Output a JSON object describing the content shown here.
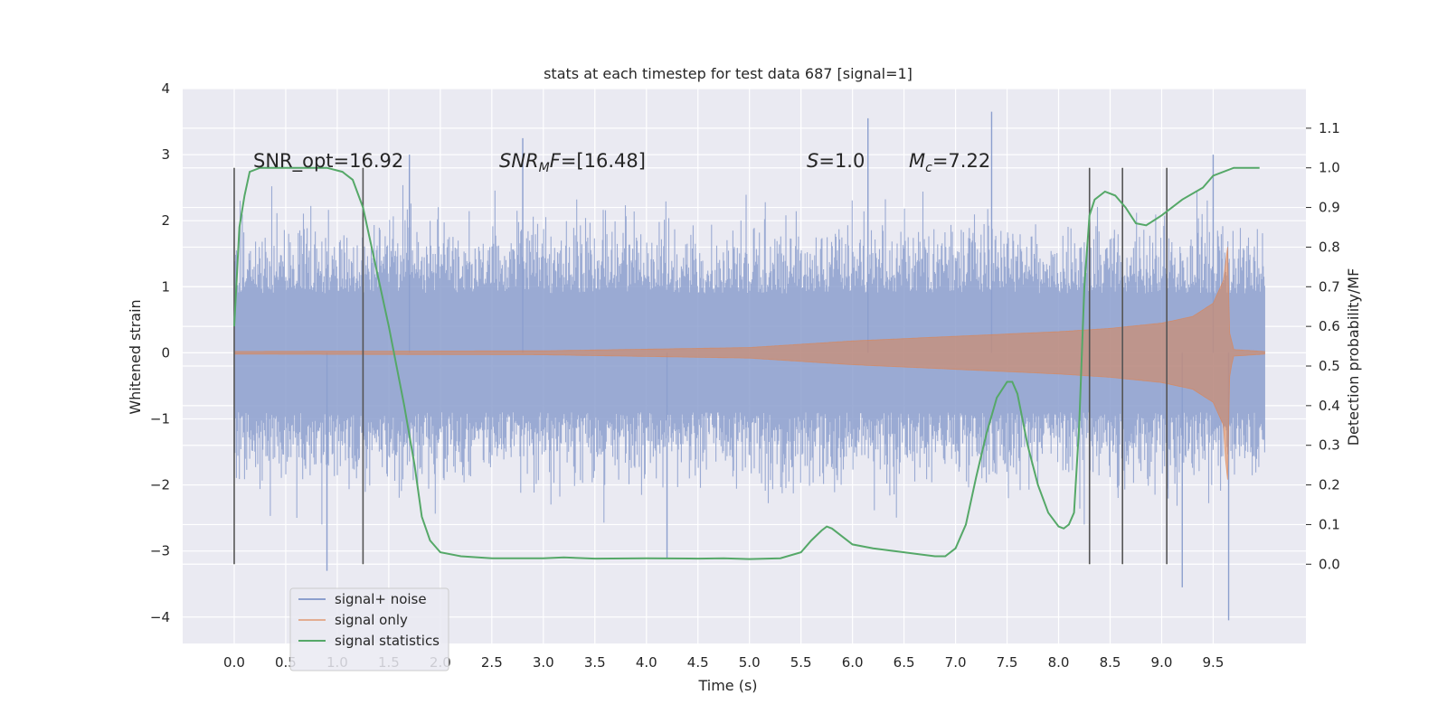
{
  "chart_data": {
    "type": "line",
    "title": "stats at each timestep for test data 687 [signal=1]",
    "xlabel": "Time (s)",
    "ylabel_left": "Whitened strain",
    "ylabel_right": "Detection probability/MF",
    "xlim": [
      -0.5,
      10.4
    ],
    "ylim_left": [
      -4.4,
      4.0
    ],
    "ylim_right": [
      -0.2,
      1.2
    ],
    "x_ticks": [
      "0.0",
      "0.5",
      "1.0",
      "1.5",
      "2.0",
      "2.5",
      "3.0",
      "3.5",
      "4.0",
      "4.5",
      "5.0",
      "5.5",
      "6.0",
      "6.5",
      "7.0",
      "7.5",
      "8.0",
      "8.5",
      "9.0",
      "9.5"
    ],
    "y_left_ticks": [
      "4",
      "3",
      "2",
      "1",
      "0",
      "−1",
      "−2",
      "−3",
      "−4"
    ],
    "y_right_ticks": [
      "1.1",
      "1.0",
      "0.9",
      "0.8",
      "0.7",
      "0.6",
      "0.5",
      "0.4",
      "0.3",
      "0.2",
      "0.1",
      "0.0"
    ],
    "grid": true,
    "legend_position": "lower-left",
    "annotations": {
      "snr_opt": "SNR_opt=16.92",
      "snr_mf": "=[16.48]",
      "snr_mf_base": "SNR",
      "snr_mf_sub": "M",
      "snr_mf_f": "F",
      "s_label": "S",
      "s_value": "=1.0",
      "mc_label": "M",
      "mc_sub": "c",
      "mc_value": "=7.22"
    },
    "series": [
      {
        "name": "signal+ noise",
        "color": "#8c9fce",
        "description_range": "noise-dominated strain from t=0 to 10.0 s, amplitude roughly -4 to 3.6",
        "spikes": [
          {
            "x": 0.9,
            "y": -3.3
          },
          {
            "x": 1.7,
            "y": 3.0
          },
          {
            "x": 2.8,
            "y": 3.25
          },
          {
            "x": 4.2,
            "y": -3.1
          },
          {
            "x": 6.15,
            "y": 3.55
          },
          {
            "x": 7.35,
            "y": 3.65
          },
          {
            "x": 9.2,
            "y": -3.55
          },
          {
            "x": 9.65,
            "y": -4.05
          },
          {
            "x": 9.5,
            "y": 3.0
          }
        ]
      },
      {
        "name": "signal only",
        "color": "#dd8452",
        "envelope": [
          [
            0.0,
            0.02
          ],
          [
            3.0,
            0.03
          ],
          [
            5.0,
            0.08
          ],
          [
            6.0,
            0.18
          ],
          [
            7.0,
            0.25
          ],
          [
            8.0,
            0.32
          ],
          [
            8.5,
            0.37
          ],
          [
            9.0,
            0.45
          ],
          [
            9.3,
            0.55
          ],
          [
            9.5,
            0.75
          ],
          [
            9.6,
            1.1
          ],
          [
            9.64,
            1.6
          ],
          [
            9.66,
            0.3
          ],
          [
            9.7,
            0.05
          ],
          [
            10.0,
            0.02
          ]
        ]
      },
      {
        "name": "signal statistics",
        "color": "#55a868",
        "x": [
          0.0,
          0.05,
          0.1,
          0.15,
          0.25,
          0.5,
          0.9,
          1.05,
          1.15,
          1.25,
          1.35,
          1.5,
          1.65,
          1.75,
          1.82,
          1.9,
          2.0,
          2.2,
          2.5,
          3.0,
          3.2,
          3.5,
          4.0,
          4.5,
          4.75,
          5.0,
          5.3,
          5.5,
          5.6,
          5.7,
          5.75,
          5.8,
          5.9,
          6.0,
          6.2,
          6.5,
          6.8,
          6.9,
          7.0,
          7.1,
          7.2,
          7.3,
          7.4,
          7.5,
          7.55,
          7.6,
          7.7,
          7.8,
          7.9,
          8.0,
          8.05,
          8.1,
          8.15,
          8.2,
          8.25,
          8.3,
          8.35,
          8.45,
          8.55,
          8.65,
          8.75,
          8.85,
          9.0,
          9.2,
          9.4,
          9.5,
          9.7,
          9.95
        ],
        "y": [
          0.6,
          0.85,
          0.93,
          0.99,
          1.0,
          1.0,
          1.0,
          0.99,
          0.97,
          0.9,
          0.78,
          0.6,
          0.4,
          0.25,
          0.12,
          0.06,
          0.03,
          0.02,
          0.015,
          0.015,
          0.017,
          0.014,
          0.015,
          0.014,
          0.015,
          0.013,
          0.015,
          0.03,
          0.06,
          0.085,
          0.095,
          0.09,
          0.07,
          0.05,
          0.04,
          0.03,
          0.02,
          0.02,
          0.04,
          0.1,
          0.22,
          0.33,
          0.42,
          0.46,
          0.46,
          0.43,
          0.3,
          0.2,
          0.13,
          0.095,
          0.09,
          0.1,
          0.13,
          0.35,
          0.7,
          0.88,
          0.92,
          0.94,
          0.93,
          0.9,
          0.86,
          0.855,
          0.88,
          0.92,
          0.95,
          0.98,
          1.0,
          1.0
        ]
      }
    ],
    "vertical_markers": [
      0.0,
      1.25,
      8.3,
      8.62,
      9.05
    ],
    "marker_range_right": [
      0.0,
      1.0
    ]
  }
}
